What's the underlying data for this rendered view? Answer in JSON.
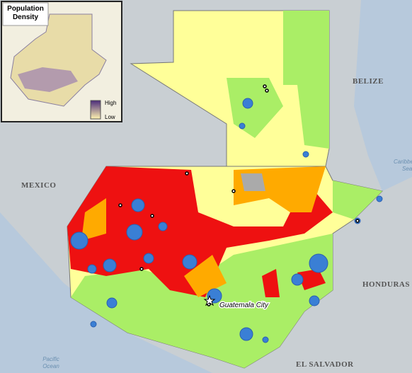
{
  "inset": {
    "title": "Population Density",
    "legend": {
      "high": "High",
      "low": "Low"
    }
  },
  "labels": {
    "countries": [
      "MEXICO",
      "BELIZE",
      "HONDURAS",
      "EL SALVADOR"
    ],
    "capital": "Guatemala City",
    "water": {
      "pacific": [
        "Pacific",
        "Ocean"
      ],
      "caribbean": [
        "Caribbe",
        "Sea"
      ]
    }
  }
}
